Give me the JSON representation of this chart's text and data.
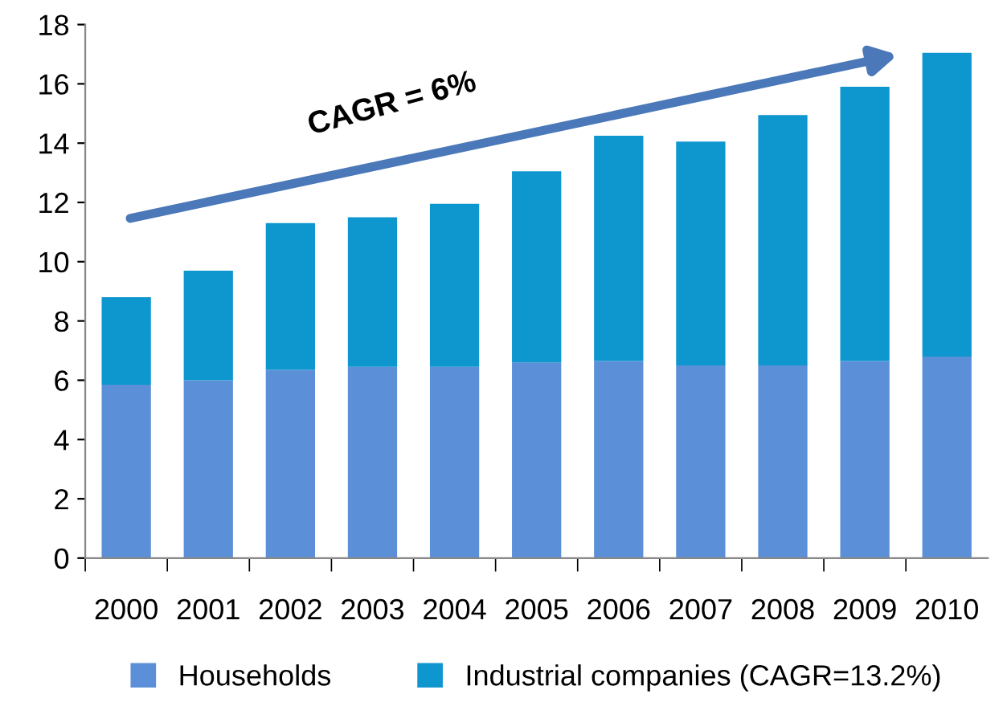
{
  "chart_data": {
    "type": "bar",
    "stacked": true,
    "categories": [
      "2000",
      "2001",
      "2002",
      "2003",
      "2004",
      "2005",
      "2006",
      "2007",
      "2008",
      "2009",
      "2010"
    ],
    "series": [
      {
        "name": "Households",
        "color": "#5b8fd8",
        "values": [
          5.85,
          6.0,
          6.35,
          6.45,
          6.45,
          6.6,
          6.65,
          6.5,
          6.5,
          6.65,
          6.8
        ]
      },
      {
        "name": "Industrial companies (CAGR=13.2%)",
        "color": "#0e96cf",
        "values": [
          2.95,
          3.7,
          4.95,
          5.05,
          5.5,
          6.45,
          7.6,
          7.55,
          8.45,
          9.25,
          10.25
        ]
      }
    ],
    "ylim": [
      0,
      18
    ],
    "yticks": [
      0,
      2,
      4,
      6,
      8,
      10,
      12,
      14,
      16,
      18
    ],
    "grid": false,
    "legend": "bottom",
    "annotations": [
      "CAGR = 6%"
    ]
  }
}
